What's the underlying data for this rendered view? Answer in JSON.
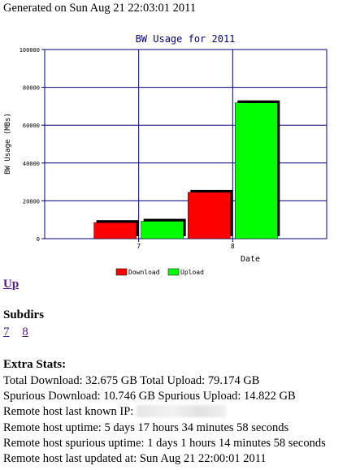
{
  "generated": "Generated on Sun Aug 21 22:03:01 2011",
  "chart_data": {
    "type": "bar",
    "title": "BW Usage for 2011",
    "xlabel": "Date",
    "ylabel": "BW Usage (MBs)",
    "categories": [
      "7",
      "8"
    ],
    "ylim": [
      0,
      100000
    ],
    "yticks": [
      "0",
      "20000",
      "40000",
      "60000",
      "80000",
      "100000"
    ],
    "grid": true,
    "legend_position": "bottom",
    "series": [
      {
        "name": "Download",
        "values": [
          8500,
          24500
        ],
        "color": "#ff0000"
      },
      {
        "name": "Upload",
        "values": [
          9200,
          71800
        ],
        "color": "#00ff00"
      }
    ]
  },
  "nav": {
    "up_label": "Up"
  },
  "subdirs": {
    "heading": "Subdirs",
    "items": [
      "7",
      "8"
    ]
  },
  "extra": {
    "heading": "Extra Stats:",
    "total_line": "Total Download: 32.675 GB Total Upload: 79.174 GB",
    "spurious_line": "Spurious Download: 10.746 GB Spurious Upload: 14.822 GB",
    "ip_label": "Remote host last known IP:",
    "uptime_line": "Remote host uptime: 5 days 17 hours 34 minutes 58 seconds",
    "spurious_uptime_line": "Remote host spurious uptime: 1 days 1 hours 14 minutes 58 seconds",
    "updated_line": "Remote host last updated at: Sun Aug 21 22:00:01 2011"
  }
}
